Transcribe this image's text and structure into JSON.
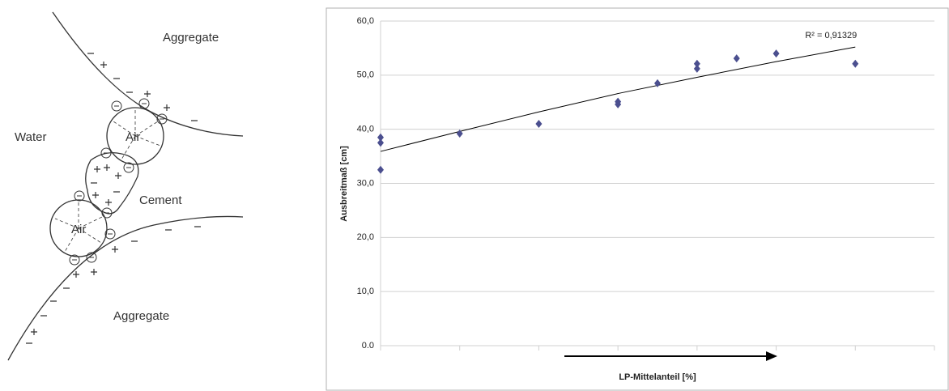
{
  "diagram": {
    "labels": [
      "Aggregate",
      "Water",
      "Air",
      "Cement",
      "Air",
      "Aggregate"
    ]
  },
  "chart_data": {
    "type": "scatter",
    "xlabel": "LP-Mittelanteil [%]",
    "ylabel": "Ausbreitmaß [cm]",
    "xlim": [
      0,
      7
    ],
    "xticks": [
      0,
      1,
      2,
      3,
      4,
      5,
      6,
      7
    ],
    "ylim": [
      0,
      60
    ],
    "yticks": [
      {
        "value": 0,
        "label": "0.0"
      },
      {
        "value": 10,
        "label": "10,0"
      },
      {
        "value": 20,
        "label": "20,0"
      },
      {
        "value": 30,
        "label": "30,0"
      },
      {
        "value": 40,
        "label": "40,0"
      },
      {
        "value": 50,
        "label": "50,0"
      },
      {
        "value": 60,
        "label": "60,0"
      }
    ],
    "grid": true,
    "series": [
      {
        "color": "#4b4f8f",
        "x": [
          0,
          0,
          0,
          1,
          2,
          3,
          3,
          3.5,
          4,
          4,
          4.5,
          5,
          6
        ],
        "values": [
          38.5,
          37.5,
          32.5,
          39.2,
          41,
          45.1,
          44.6,
          48.5,
          52.1,
          51.2,
          53.1,
          54,
          52.1
        ]
      }
    ],
    "trendline": {
      "label": "R² = 0,91329",
      "color": "#000000",
      "x": [
        0,
        1,
        2,
        3,
        4,
        5,
        6
      ],
      "values": [
        35.9,
        39.6,
        43.2,
        46.6,
        49.6,
        52.5,
        55.2
      ]
    }
  }
}
